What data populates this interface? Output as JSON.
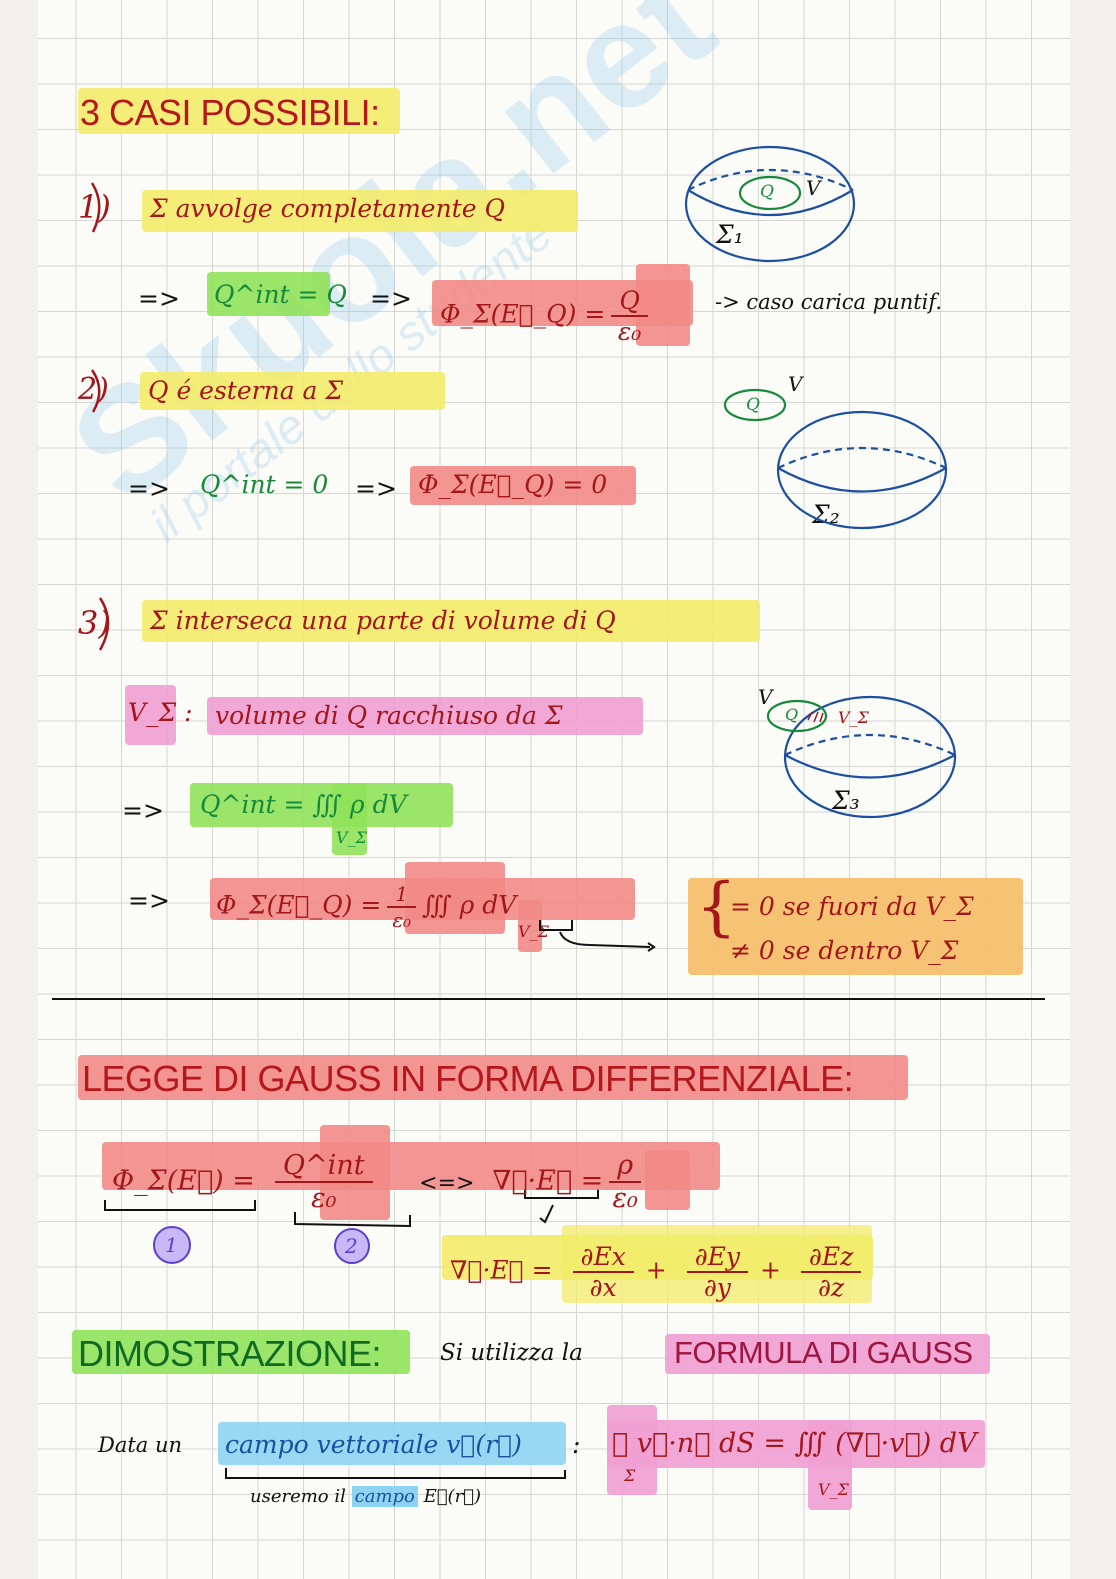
{
  "watermark": {
    "logo_text": "Skuola.net",
    "tagline": "il portale dello studente"
  },
  "section1": {
    "title": "3 CASI POSSIBILI:",
    "case1": {
      "num": "1)",
      "text": "Σ avvolge completamente Q",
      "qint": "Q^int = Q",
      "arrow1": "=>",
      "arrow2": "=>",
      "flux_lhs": "Φ_Σ(E⃗_Q) =",
      "flux_num": "Q",
      "flux_den": "ε₀",
      "note": "-> caso carica puntif.",
      "sphere_label": "Σ₁",
      "q_label": "Q",
      "v_label": "V"
    },
    "case2": {
      "num": "2)",
      "text": "Q é esterna a Σ",
      "qint": "Q^int = 0",
      "arrow1": "=>",
      "arrow2": "=>",
      "flux": "Φ_Σ(E⃗_Q) = 0",
      "sphere_label": "Σ₂",
      "q_label": "Q",
      "v_label": "V"
    },
    "case3": {
      "num": "3)",
      "text": "Σ interseca una parte di volume di Q",
      "vsigma": "V_Σ :",
      "vsigma_def": "volume di Q racchiuso da Σ",
      "arrow1": "=>",
      "qint": "Q^int = ∭ ρ dV",
      "qint_sub": "V_Σ",
      "arrow2": "=>",
      "flux_lhs": "Φ_Σ(E⃗_Q) =",
      "flux_num": "1",
      "flux_den": "ε₀",
      "flux_rhs": "∭ ρ dV",
      "flux_sub": "V_Σ",
      "cases": [
        "= 0 se fuori da V_Σ",
        "≠ 0 se dentro V_Σ"
      ],
      "sphere_label": "Σ₃",
      "q_label": "Q",
      "v_label": "V",
      "vs_label": "V_Σ"
    }
  },
  "section2": {
    "title": "LEGGE DI GAUSS IN FORMA DIFFERENZIALE:",
    "eq_lhs": "Φ_Σ(E⃗) =",
    "eq_num": "Q^int",
    "eq_den": "ε₀",
    "equiv": "<=>",
    "div": "∇⃗·E⃗ =",
    "div_num": "ρ",
    "div_den": "ε₀",
    "marker1": "1",
    "marker2": "2",
    "expansion": {
      "lhs": "∇⃗·E⃗ =",
      "t1n": "∂Ex",
      "t1d": "∂x",
      "t2n": "∂Ey",
      "t2d": "∂y",
      "t3n": "∂Ez",
      "t3d": "∂z",
      "plus": "+"
    }
  },
  "section3": {
    "title": "DIMOSTRAZIONE:",
    "text": "Si utilizza la",
    "formula_title": "FORMULA DI GAUSS",
    "data_un": "Data un",
    "field": "campo vettoriale v⃗(r⃗)",
    "colon": ":",
    "gauss_formula": "∯ v⃗·n⃗ dS = ∭ (∇⃗·v⃗) dV",
    "gauss_sub1": "Σ",
    "gauss_sub2": "V_Σ",
    "note_pre": "useremo il",
    "note_hl": "campo",
    "note_post": "E⃗(r⃗)"
  },
  "colors": {
    "ink_red": "#a3161a",
    "yellow": "#f3ec6a",
    "green": "#8fe25a",
    "red": "#f28a86",
    "pink": "#ef9fd3",
    "orange": "#f6c06e",
    "blue": "#8fd3f2",
    "sphere": "#1c4fa0",
    "purple": "#8a5cf0"
  }
}
